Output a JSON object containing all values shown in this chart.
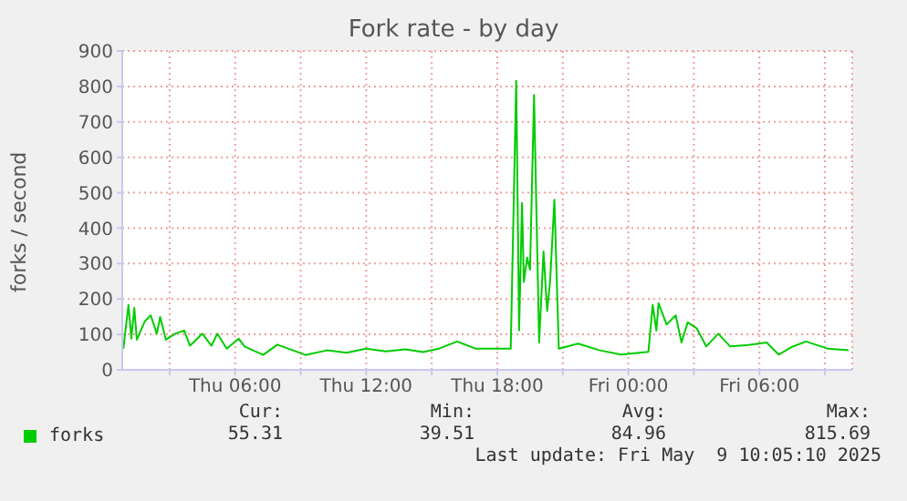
{
  "chart_data": {
    "type": "line",
    "title": "Fork rate - by day",
    "ylabel": "forks / second",
    "x": [
      "2025-05-08T00:53",
      "2025-05-08T01:07",
      "2025-05-08T01:15",
      "2025-05-08T01:23",
      "2025-05-08T01:30",
      "2025-05-08T01:52",
      "2025-05-08T02:08",
      "2025-05-08T02:25",
      "2025-05-08T02:34",
      "2025-05-08T02:50",
      "2025-05-08T03:15",
      "2025-05-08T03:40",
      "2025-05-08T03:56",
      "2025-05-08T04:30",
      "2025-05-08T04:55",
      "2025-05-08T05:11",
      "2025-05-08T05:37",
      "2025-05-08T06:10",
      "2025-05-08T06:26",
      "2025-05-08T07:17",
      "2025-05-08T07:56",
      "2025-05-08T09:13",
      "2025-05-08T10:12",
      "2025-05-08T11:06",
      "2025-05-08T12:00",
      "2025-05-08T12:54",
      "2025-05-08T13:48",
      "2025-05-08T14:36",
      "2025-05-08T15:20",
      "2025-05-08T16:10",
      "2025-05-08T17:00",
      "2025-05-08T18:37",
      "2025-05-08T18:52",
      "2025-05-08T19:00",
      "2025-05-08T19:08",
      "2025-05-08T19:13",
      "2025-05-08T19:22",
      "2025-05-08T19:30",
      "2025-05-08T19:41",
      "2025-05-08T19:55",
      "2025-05-08T20:07",
      "2025-05-08T20:17",
      "2025-05-08T20:25",
      "2025-05-08T20:37",
      "2025-05-08T20:49",
      "2025-05-08T21:42",
      "2025-05-08T22:42",
      "2025-05-08T23:40",
      "2025-05-09T00:55",
      "2025-05-09T01:07",
      "2025-05-09T01:17",
      "2025-05-09T01:23",
      "2025-05-09T01:45",
      "2025-05-09T02:10",
      "2025-05-09T02:26",
      "2025-05-09T02:43",
      "2025-05-09T03:08",
      "2025-05-09T03:34",
      "2025-05-09T04:07",
      "2025-05-09T04:40",
      "2025-05-09T05:30",
      "2025-05-09T06:20",
      "2025-05-09T06:53",
      "2025-05-09T07:30",
      "2025-05-09T08:08",
      "2025-05-09T09:07",
      "2025-05-09T10:05"
    ],
    "series": [
      {
        "name": "forks",
        "color": "#00cc00",
        "values": [
          60,
          183,
          88,
          175,
          85,
          137,
          154,
          102,
          149,
          85,
          102,
          111,
          68,
          102,
          68,
          102,
          60,
          88,
          66,
          42,
          71,
          42,
          55,
          48,
          60,
          52,
          58,
          50,
          60,
          80,
          60,
          60,
          816,
          111,
          471,
          248,
          317,
          283,
          776,
          77,
          334,
          166,
          248,
          480,
          60,
          74,
          55,
          43,
          51,
          183,
          111,
          188,
          128,
          154,
          77,
          134,
          117,
          66,
          102,
          66,
          70,
          77,
          43,
          65,
          80,
          60,
          55
        ]
      }
    ],
    "xlim": [
      "2025-05-08T00:50",
      "2025-05-09T10:15"
    ],
    "xticks": [
      {
        "value": "2025-05-08T03:00",
        "label": null
      },
      {
        "value": "2025-05-08T06:00",
        "label": "Thu 06:00"
      },
      {
        "value": "2025-05-08T09:00",
        "label": null
      },
      {
        "value": "2025-05-08T12:00",
        "label": "Thu 12:00"
      },
      {
        "value": "2025-05-08T15:00",
        "label": null
      },
      {
        "value": "2025-05-08T18:00",
        "label": "Thu 18:00"
      },
      {
        "value": "2025-05-08T21:00",
        "label": null
      },
      {
        "value": "2025-05-09T00:00",
        "label": "Fri 00:00"
      },
      {
        "value": "2025-05-09T03:00",
        "label": null
      },
      {
        "value": "2025-05-09T06:00",
        "label": "Fri 06:00"
      },
      {
        "value": "2025-05-09T09:00",
        "label": null
      }
    ],
    "ylim": [
      0,
      900
    ],
    "yticks": [
      0,
      100,
      200,
      300,
      400,
      500,
      600,
      700,
      800,
      900
    ],
    "grid": true,
    "legend": "bottom",
    "marker": "none",
    "line_style": "solid",
    "annotations": [
      "Cur:",
      "Min:",
      "Avg:",
      "Max:",
      "55.31",
      "39.51",
      "84.96",
      "815.69",
      "Last update: Fri May  9 10:05:10 2025"
    ]
  }
}
